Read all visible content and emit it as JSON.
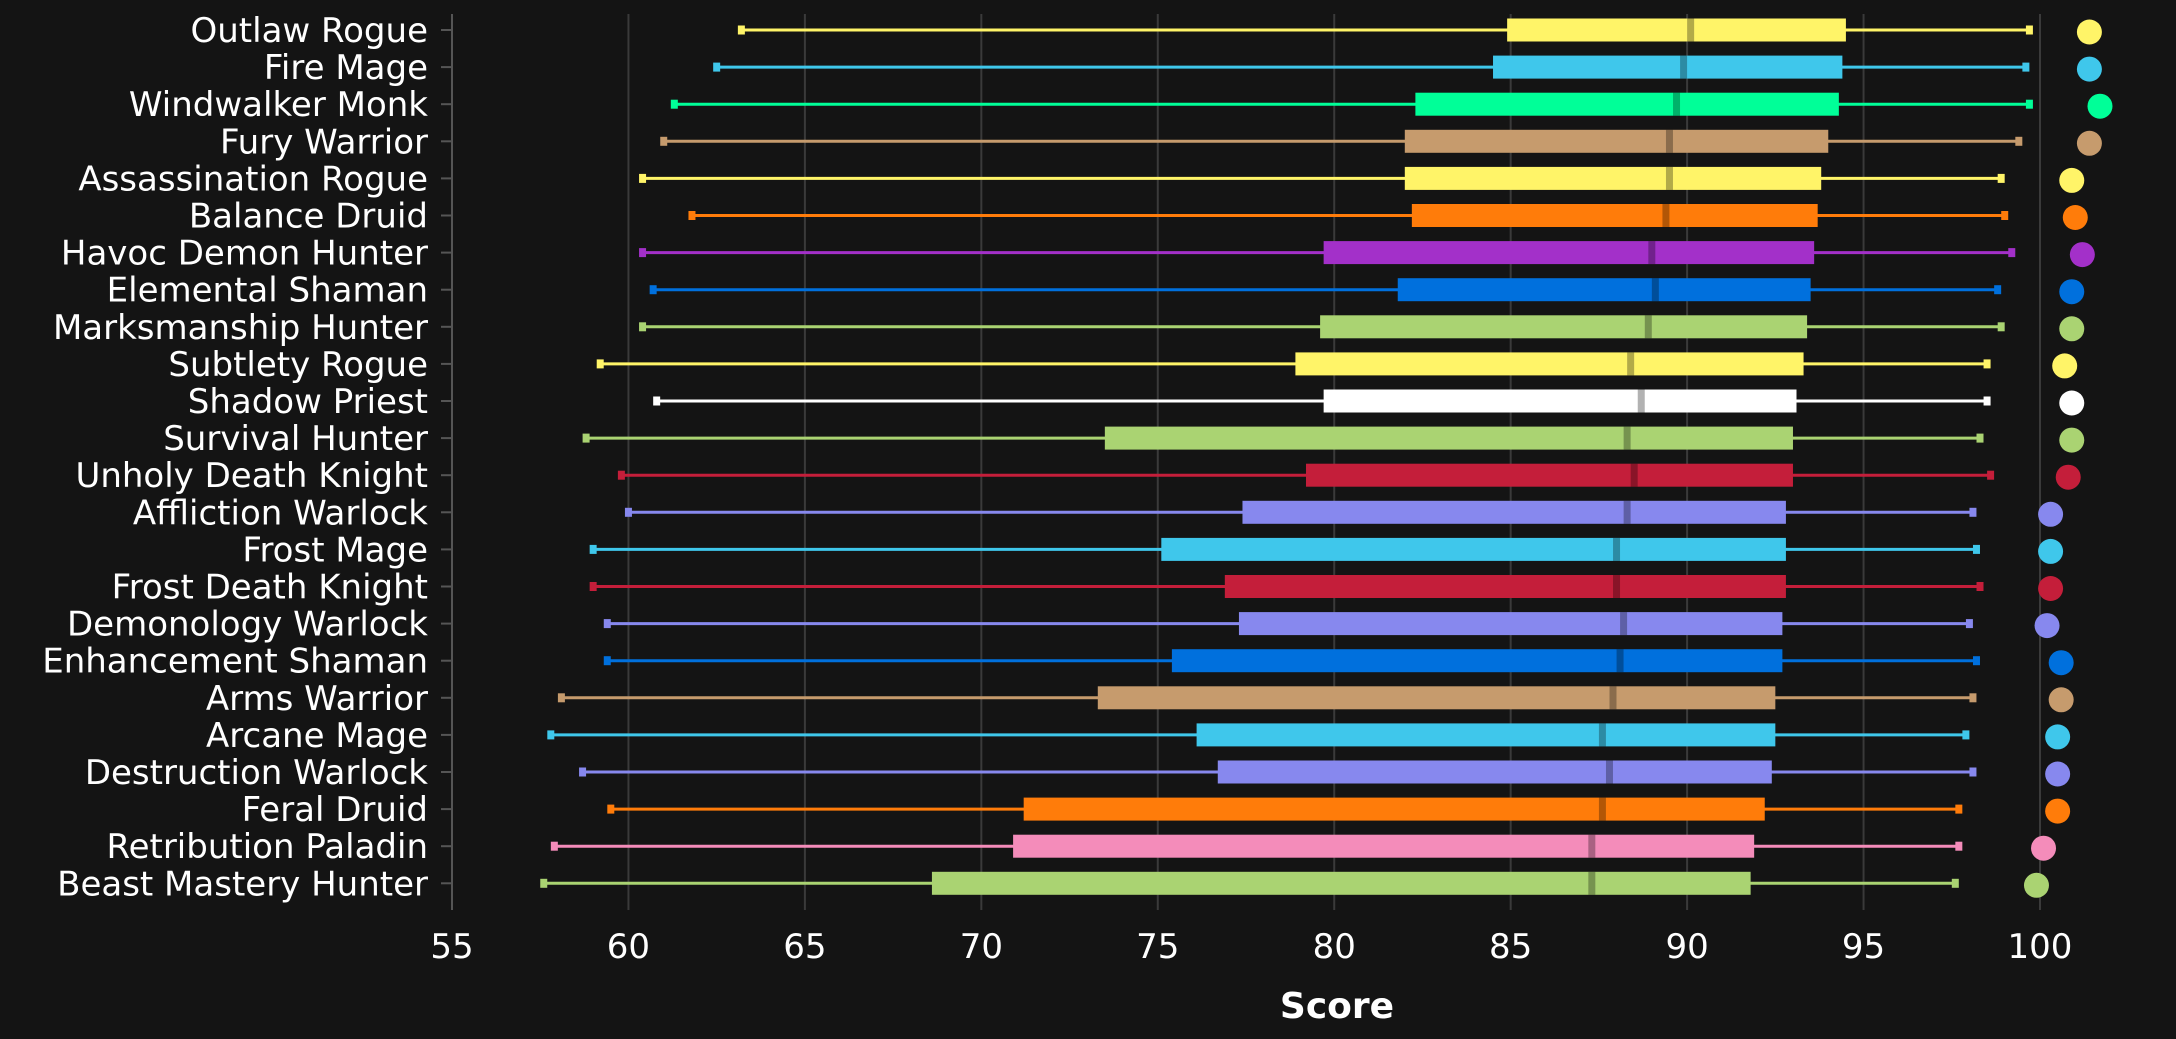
{
  "chart_data": {
    "type": "boxplot",
    "xlabel": "Score",
    "xlim": [
      55,
      100
    ],
    "x_ticks": [
      "55",
      "60",
      "65",
      "70",
      "75",
      "80",
      "85",
      "90",
      "95",
      "100"
    ],
    "grid": "vertical",
    "legend": "none",
    "series": [
      {
        "name": "Outlaw Rogue",
        "color": "#FFF468",
        "min": 63.2,
        "q1": 84.9,
        "median": 90.1,
        "q3": 94.5,
        "max": 99.7,
        "dot": 101.4
      },
      {
        "name": "Fire Mage",
        "color": "#3FC7EB",
        "min": 62.5,
        "q1": 84.5,
        "median": 89.9,
        "q3": 94.4,
        "max": 99.6,
        "dot": 101.4
      },
      {
        "name": "Windwalker Monk",
        "color": "#00FF98",
        "min": 61.3,
        "q1": 82.3,
        "median": 89.7,
        "q3": 94.3,
        "max": 99.7,
        "dot": 101.7
      },
      {
        "name": "Fury Warrior",
        "color": "#C69B6D",
        "min": 61.0,
        "q1": 82.0,
        "median": 89.5,
        "q3": 94.0,
        "max": 99.4,
        "dot": 101.4
      },
      {
        "name": "Assassination Rogue",
        "color": "#FFF468",
        "min": 60.4,
        "q1": 82.0,
        "median": 89.5,
        "q3": 93.8,
        "max": 98.9,
        "dot": 100.9
      },
      {
        "name": "Balance Druid",
        "color": "#FF7C0A",
        "min": 61.8,
        "q1": 82.2,
        "median": 89.4,
        "q3": 93.7,
        "max": 99.0,
        "dot": 101.0
      },
      {
        "name": "Havoc Demon Hunter",
        "color": "#A330C9",
        "min": 60.4,
        "q1": 79.7,
        "median": 89.0,
        "q3": 93.6,
        "max": 99.2,
        "dot": 101.2
      },
      {
        "name": "Elemental Shaman",
        "color": "#0070DD",
        "min": 60.7,
        "q1": 81.8,
        "median": 89.1,
        "q3": 93.5,
        "max": 98.8,
        "dot": 100.9
      },
      {
        "name": "Marksmanship Hunter",
        "color": "#AAD372",
        "min": 60.4,
        "q1": 79.6,
        "median": 88.9,
        "q3": 93.4,
        "max": 98.9,
        "dot": 100.9
      },
      {
        "name": "Subtlety Rogue",
        "color": "#FFF468",
        "min": 59.2,
        "q1": 78.9,
        "median": 88.4,
        "q3": 93.3,
        "max": 98.5,
        "dot": 100.7
      },
      {
        "name": "Shadow Priest",
        "color": "#FFFFFF",
        "min": 60.8,
        "q1": 79.7,
        "median": 88.7,
        "q3": 93.1,
        "max": 98.5,
        "dot": 100.9
      },
      {
        "name": "Survival Hunter",
        "color": "#AAD372",
        "min": 58.8,
        "q1": 73.5,
        "median": 88.3,
        "q3": 93.0,
        "max": 98.3,
        "dot": 100.9
      },
      {
        "name": "Unholy Death Knight",
        "color": "#C41E3A",
        "min": 59.8,
        "q1": 79.2,
        "median": 88.5,
        "q3": 93.0,
        "max": 98.6,
        "dot": 100.8
      },
      {
        "name": "Affliction Warlock",
        "color": "#8788EE",
        "min": 60.0,
        "q1": 77.4,
        "median": 88.3,
        "q3": 92.8,
        "max": 98.1,
        "dot": 100.3
      },
      {
        "name": "Frost Mage",
        "color": "#3FC7EB",
        "min": 59.0,
        "q1": 75.1,
        "median": 88.0,
        "q3": 92.8,
        "max": 98.2,
        "dot": 100.3
      },
      {
        "name": "Frost Death Knight",
        "color": "#C41E3A",
        "min": 59.0,
        "q1": 76.9,
        "median": 88.0,
        "q3": 92.8,
        "max": 98.3,
        "dot": 100.3
      },
      {
        "name": "Demonology Warlock",
        "color": "#8788EE",
        "min": 59.4,
        "q1": 77.3,
        "median": 88.2,
        "q3": 92.7,
        "max": 98.0,
        "dot": 100.2
      },
      {
        "name": "Enhancement Shaman",
        "color": "#0070DD",
        "min": 59.4,
        "q1": 75.4,
        "median": 88.1,
        "q3": 92.7,
        "max": 98.2,
        "dot": 100.6
      },
      {
        "name": "Arms Warrior",
        "color": "#C69B6D",
        "min": 58.1,
        "q1": 73.3,
        "median": 87.9,
        "q3": 92.5,
        "max": 98.1,
        "dot": 100.6
      },
      {
        "name": "Arcane Mage",
        "color": "#3FC7EB",
        "min": 57.8,
        "q1": 76.1,
        "median": 87.6,
        "q3": 92.5,
        "max": 97.9,
        "dot": 100.5
      },
      {
        "name": "Destruction Warlock",
        "color": "#8788EE",
        "min": 58.7,
        "q1": 76.7,
        "median": 87.8,
        "q3": 92.4,
        "max": 98.1,
        "dot": 100.5
      },
      {
        "name": "Feral Druid",
        "color": "#FF7C0A",
        "min": 59.5,
        "q1": 71.2,
        "median": 87.6,
        "q3": 92.2,
        "max": 97.7,
        "dot": 100.5
      },
      {
        "name": "Retribution Paladin",
        "color": "#F48CBA",
        "min": 57.9,
        "q1": 70.9,
        "median": 87.3,
        "q3": 91.9,
        "max": 97.7,
        "dot": 100.1
      },
      {
        "name": "Beast Mastery Hunter",
        "color": "#AAD372",
        "min": 57.6,
        "q1": 68.6,
        "median": 87.3,
        "q3": 91.8,
        "max": 97.6,
        "dot": 99.9
      }
    ]
  }
}
